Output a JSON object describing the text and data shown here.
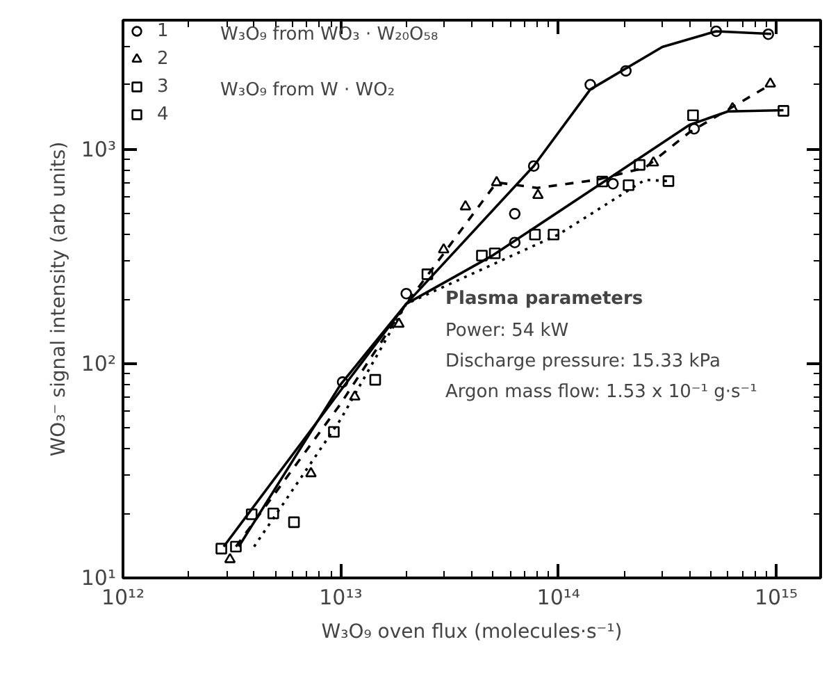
{
  "chart_data": {
    "type": "scatter",
    "xlabel": "W₃O₉ oven flux (molecules·s⁻¹)",
    "ylabel": "WO₃⁻ signal intensity (arb units)",
    "log": "xy",
    "grid": false,
    "legend": "top left",
    "xlim": [
      1000000000000.0,
      1600000000000000.0
    ],
    "ylim": [
      10,
      4000
    ],
    "xticks": [
      {
        "value": 1000000000000.0,
        "label": "10¹²"
      },
      {
        "value": 2000000000000.0,
        "label": null
      },
      {
        "value": 3000000000000.0,
        "label": null
      },
      {
        "value": 4000000000000.0,
        "label": null
      },
      {
        "value": 5000000000000.0,
        "label": null
      },
      {
        "value": 6000000000000.0,
        "label": null
      },
      {
        "value": 7000000000000.0,
        "label": null
      },
      {
        "value": 8000000000000.0,
        "label": null
      },
      {
        "value": 9000000000000.0,
        "label": null
      },
      {
        "value": 10000000000000.0,
        "label": "10¹³"
      },
      {
        "value": 20000000000000.0,
        "label": null
      },
      {
        "value": 30000000000000.0,
        "label": null
      },
      {
        "value": 40000000000000.0,
        "label": null
      },
      {
        "value": 50000000000000.0,
        "label": null
      },
      {
        "value": 60000000000000.0,
        "label": null
      },
      {
        "value": 70000000000000.0,
        "label": null
      },
      {
        "value": 80000000000000.0,
        "label": null
      },
      {
        "value": 90000000000000.0,
        "label": null
      },
      {
        "value": 100000000000000.0,
        "label": "10¹⁴"
      },
      {
        "value": 200000000000000.0,
        "label": null
      },
      {
        "value": 300000000000000.0,
        "label": null
      },
      {
        "value": 400000000000000.0,
        "label": null
      },
      {
        "value": 500000000000000.0,
        "label": null
      },
      {
        "value": 600000000000000.0,
        "label": null
      },
      {
        "value": 700000000000000.0,
        "label": null
      },
      {
        "value": 800000000000000.0,
        "label": null
      },
      {
        "value": 900000000000000.0,
        "label": null
      },
      {
        "value": 1000000000000000.0,
        "label": "10¹⁵"
      }
    ],
    "yticks": [
      {
        "value": 10,
        "label": "10¹"
      },
      {
        "value": 20,
        "label": null
      },
      {
        "value": 30,
        "label": null
      },
      {
        "value": 40,
        "label": null
      },
      {
        "value": 50,
        "label": null
      },
      {
        "value": 60,
        "label": null
      },
      {
        "value": 70,
        "label": null
      },
      {
        "value": 80,
        "label": null
      },
      {
        "value": 90,
        "label": null
      },
      {
        "value": 100,
        "label": "10²"
      },
      {
        "value": 200,
        "label": null
      },
      {
        "value": 300,
        "label": null
      },
      {
        "value": 400,
        "label": null
      },
      {
        "value": 500,
        "label": null
      },
      {
        "value": 600,
        "label": null
      },
      {
        "value": 700,
        "label": null
      },
      {
        "value": 800,
        "label": null
      },
      {
        "value": 900,
        "label": null
      },
      {
        "value": 1000,
        "label": "10³"
      },
      {
        "value": 2000,
        "label": null
      },
      {
        "value": 3000,
        "label": null
      },
      {
        "value": 4000,
        "label": null
      }
    ],
    "series": [
      {
        "name": "1",
        "marker": "circle",
        "color": "#000000",
        "x": [
          10200000000000.0,
          20000000000000.0,
          63000000000000.0,
          63000000000000.0,
          77000000000000.0,
          140000000000000.0,
          204000000000000.0,
          530000000000000.0,
          920000000000000.0,
          420000000000000.0,
          178000000000000.0
        ],
        "values": [
          82,
          212,
          367,
          500,
          835,
          2000,
          2320,
          3550,
          3440,
          1245,
          690
        ]
      },
      {
        "name": "2",
        "marker": "triangle",
        "color": "#000000",
        "x": [
          3100000000000.0,
          7300000000000.0,
          11600000000000.0,
          18500000000000.0,
          29700000000000.0,
          37400000000000.0,
          52000000000000.0,
          80500000000000.0,
          273000000000000.0,
          630000000000000.0,
          940000000000000.0
        ],
        "values": [
          12.2,
          30.7,
          70,
          153,
          340,
          540,
          700,
          610,
          865,
          1550,
          2020
        ]
      },
      {
        "name": "3",
        "marker": "square",
        "color": "#000000",
        "x": [
          2830000000000.0,
          3900000000000.0,
          4900000000000.0,
          9300000000000.0,
          51000000000000.0,
          78000000000000.0,
          159000000000000.0,
          236000000000000.0,
          415000000000000.0,
          1080000000000000.0
        ],
        "values": [
          13.7,
          19.8,
          20,
          48,
          327,
          400,
          707,
          845,
          1440,
          1510
        ]
      },
      {
        "name": "4",
        "marker": "square",
        "color": "#000000",
        "x": [
          3300000000000.0,
          6100000000000.0,
          14400000000000.0,
          25000000000000.0,
          44500000000000.0,
          95000000000000.0,
          210000000000000.0,
          320000000000000.0
        ],
        "values": [
          14.0,
          18.2,
          84,
          261,
          319,
          400,
          680,
          710
        ]
      },
      {
        "type": "line",
        "line_style": "solid",
        "color": "#000000",
        "x": [
          3400000000000.0,
          10000000000000.0,
          20000000000000.0,
          77000000000000.0,
          140000000000000.0,
          300000000000000.0,
          530000000000000.0,
          950000000000000.0
        ],
        "values": [
          14,
          80,
          190,
          835,
          1900,
          3000,
          3550,
          3450
        ]
      },
      {
        "type": "line",
        "line_style": "solid",
        "color": "#000000",
        "x": [
          2900000000000.0,
          10000000000000.0,
          20000000000000.0,
          50000000000000.0,
          160000000000000.0,
          400000000000000.0,
          600000000000000.0,
          1080000000000000.0
        ],
        "values": [
          14,
          75,
          190,
          320,
          700,
          1300,
          1500,
          1520
        ]
      },
      {
        "type": "line",
        "line_style": "dashed",
        "color": "#000000",
        "x": [
          3300000000000.0,
          10000000000000.0,
          20000000000000.0,
          52000000000000.0,
          80000000000000.0,
          150000000000000.0,
          250000000000000.0,
          400000000000000.0,
          940000000000000.0
        ],
        "values": [
          14,
          65,
          190,
          700,
          660,
          720,
          820,
          1200,
          2000
        ]
      },
      {
        "type": "line",
        "line_style": "dotted",
        "color": "#000000",
        "x": [
          4000000000000.0,
          10000000000000.0,
          20000000000000.0,
          100000000000000.0,
          250000000000000.0,
          320000000000000.0
        ],
        "values": [
          14,
          55,
          190,
          400,
          720,
          710
        ]
      }
    ],
    "annotations": [
      "W₃O₉ from WO₃ · W₂₀O₅₈",
      "W₃O₉ from W · WO₂",
      "Plasma parameters",
      "Power: 54 kW",
      "Discharge pressure: 15.33 kPa",
      "Argon mass flow: 1.53 x 10⁻¹ g·s⁻¹"
    ]
  }
}
